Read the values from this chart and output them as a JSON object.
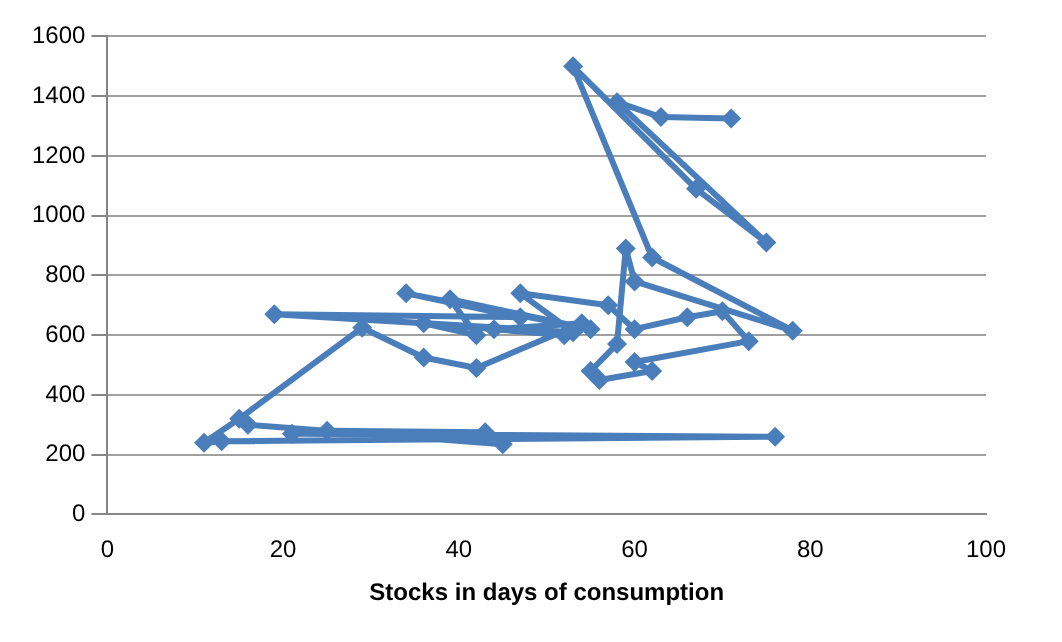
{
  "chart_data": {
    "type": "line",
    "xlabel": "Stocks in days of consumption",
    "x": [
      71,
      63,
      58,
      75,
      67,
      53,
      62,
      78,
      60,
      59,
      58,
      55,
      56,
      62,
      60,
      73,
      70,
      66,
      60,
      57,
      47,
      53,
      19,
      47,
      34,
      55,
      39,
      42,
      36,
      52,
      44,
      54,
      42,
      36,
      29,
      15,
      11,
      13,
      76,
      21,
      25,
      43,
      45,
      16
    ],
    "values": [
      1325,
      1330,
      1380,
      910,
      1090,
      1500,
      860,
      615,
      780,
      890,
      570,
      480,
      450,
      480,
      510,
      580,
      680,
      660,
      620,
      700,
      740,
      610,
      670,
      660,
      740,
      620,
      720,
      600,
      640,
      600,
      620,
      640,
      490,
      525,
      625,
      320,
      240,
      245,
      260,
      270,
      280,
      275,
      235,
      300
    ],
    "color": "#4a7ebb",
    "marker": "diamond",
    "line_style": "solid",
    "xlim": [
      0,
      100
    ],
    "xticks": [
      0,
      20,
      40,
      60,
      80,
      100
    ],
    "ylim": [
      0,
      1600
    ],
    "yticks": [
      0,
      200,
      400,
      600,
      800,
      1000,
      1200,
      1400,
      1600
    ],
    "grid": "y",
    "legend": false
  }
}
